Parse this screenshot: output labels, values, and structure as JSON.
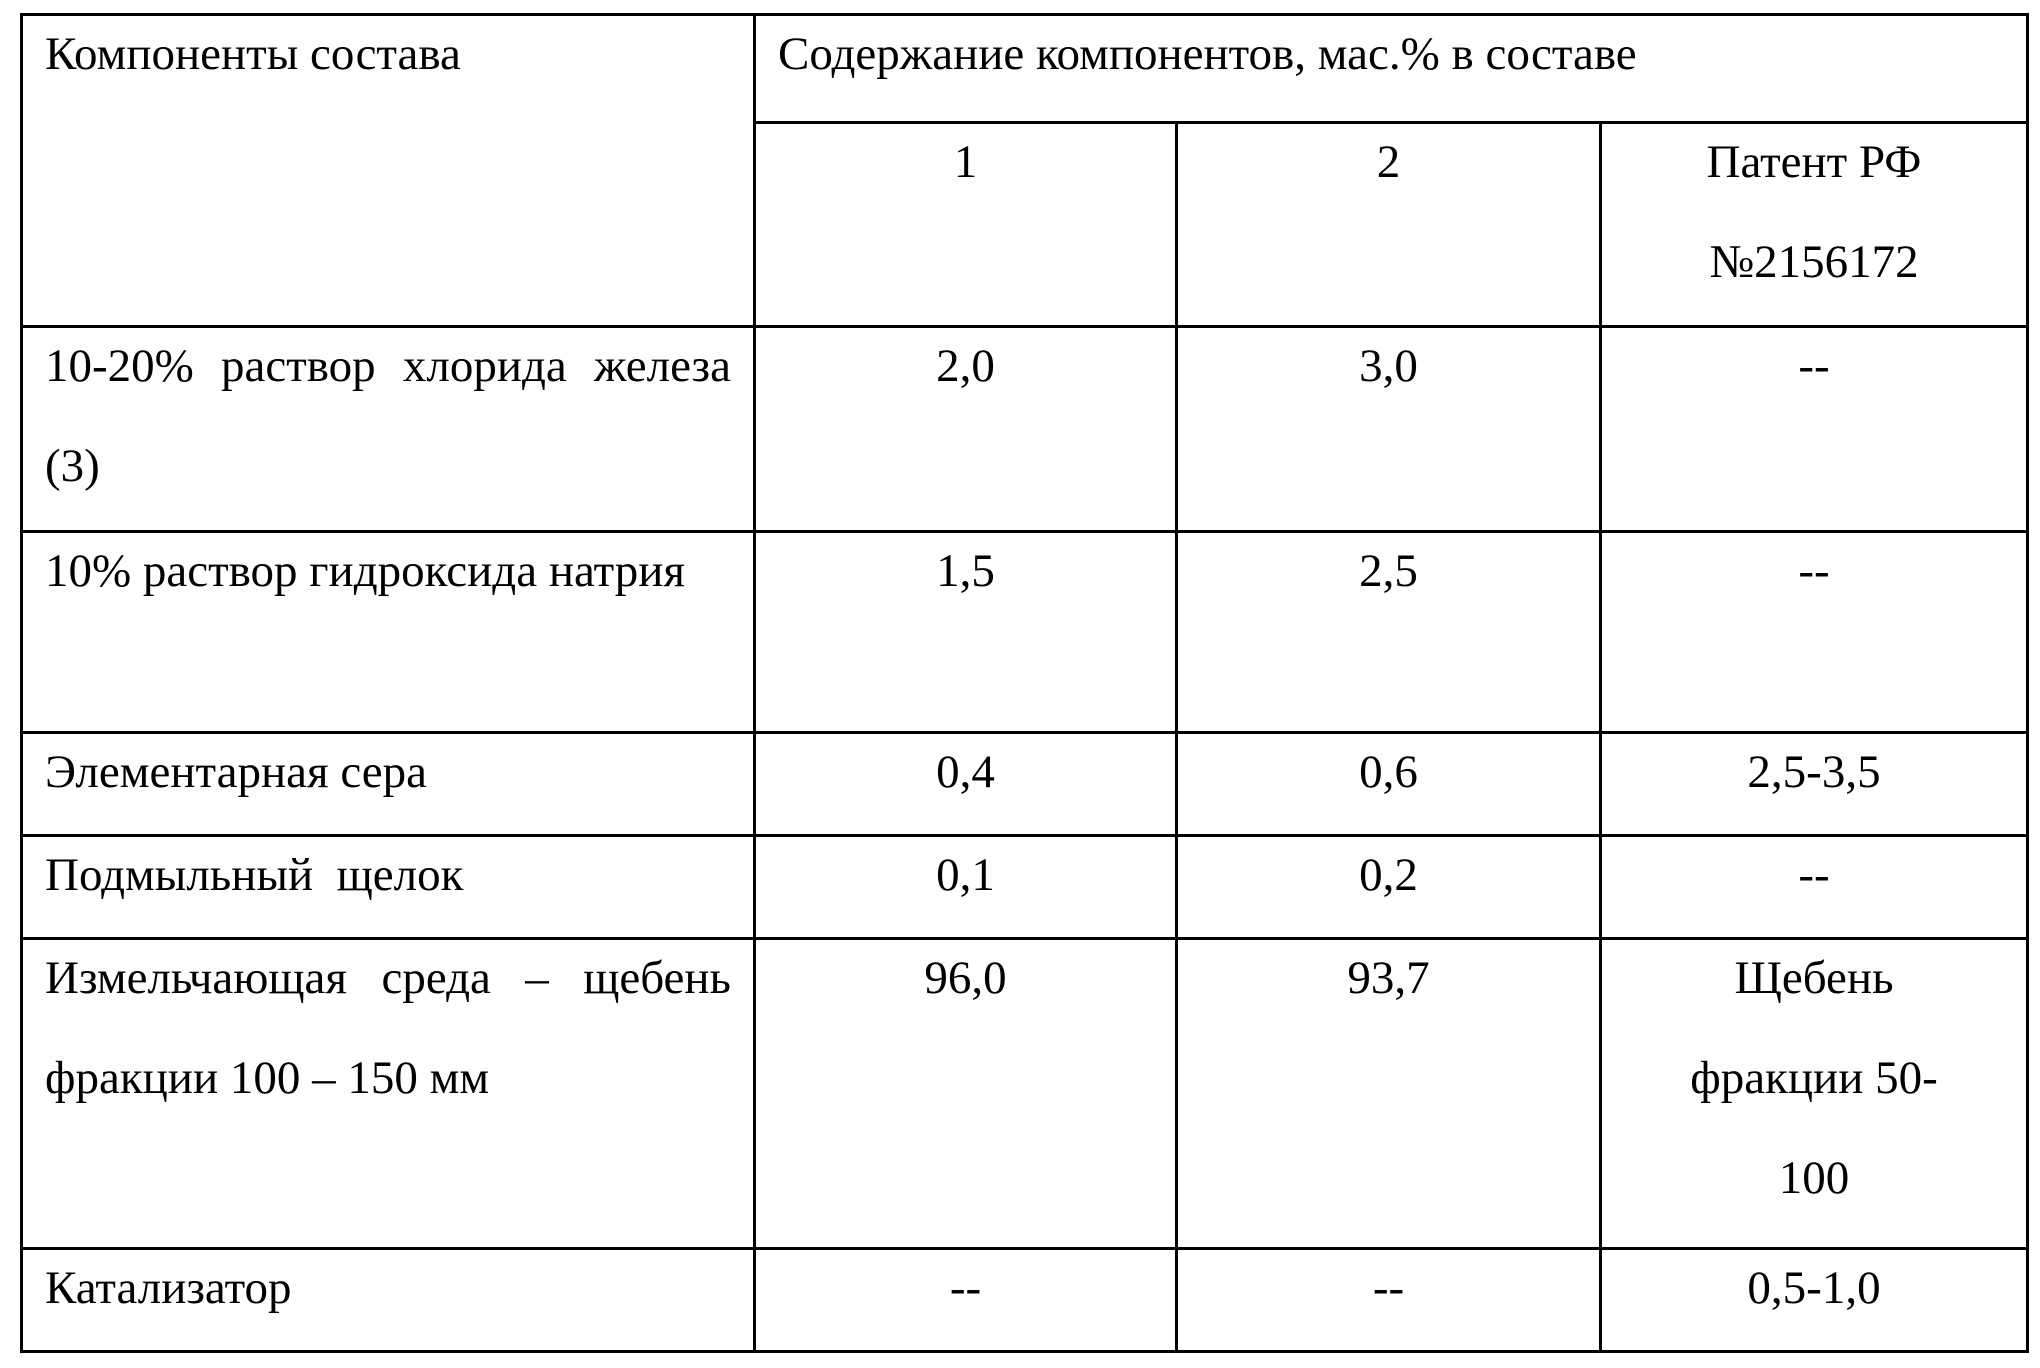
{
  "table": {
    "header": {
      "components": "Компоненты состава",
      "content": "Содержание компонентов, мас.%  в составе",
      "columns": [
        "1",
        "2",
        "Патент РФ №2156172"
      ]
    },
    "rows": [
      {
        "component": "10-20% раствор хлорида железа (3)",
        "values": [
          "2,0",
          "3,0",
          "--"
        ]
      },
      {
        "component": "10% раствор гидроксида натрия",
        "values": [
          "1,5",
          "2,5",
          "--"
        ]
      },
      {
        "component": "Элементарная сера",
        "values": [
          "0,4",
          "0,6",
          "2,5-3,5"
        ]
      },
      {
        "component": "Подмыльный  щелок",
        "values": [
          "0,1",
          "0,2",
          "--"
        ]
      },
      {
        "component": "Измельчающая среда – щебень фракции 100 – 150 мм",
        "values": [
          "96,0",
          "93,7",
          "Щебень фракции 50-100"
        ]
      },
      {
        "component": "Катализатор",
        "values": [
          "--",
          "--",
          "0,5-1,0"
        ]
      }
    ]
  }
}
